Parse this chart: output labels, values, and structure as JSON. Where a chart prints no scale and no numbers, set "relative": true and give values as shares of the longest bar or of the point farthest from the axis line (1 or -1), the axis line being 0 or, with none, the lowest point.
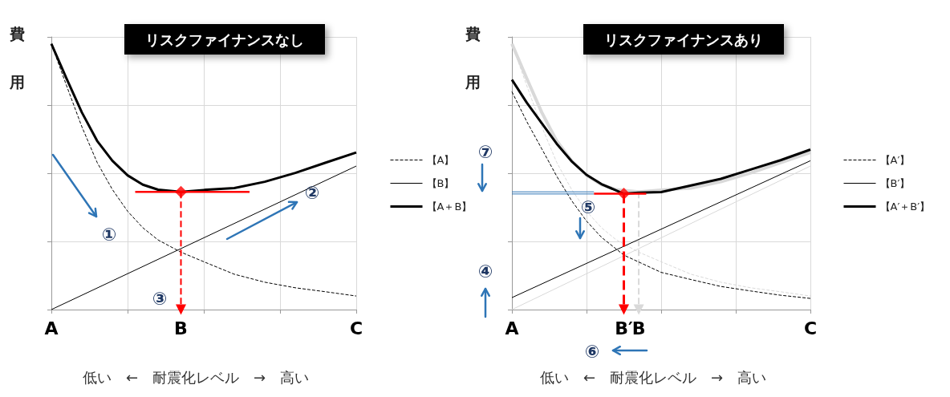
{
  "chart_data": [
    {
      "type": "line",
      "title": "リスクファイナンスなし",
      "ylabel": "費用",
      "xlabel": "低い　←　耐震化レベル　→　高い",
      "relative": true,
      "categories": [
        "A",
        null,
        null,
        null,
        null,
        null,
        null,
        null,
        null,
        null,
        null,
        null,
        null,
        null,
        null,
        null,
        null,
        "B",
        null,
        null,
        null,
        null,
        null,
        null,
        null,
        null,
        null,
        null,
        null,
        null,
        null,
        null,
        null,
        null,
        null,
        null,
        null,
        null,
        null,
        null,
        "C"
      ],
      "grid": true,
      "legend": "right",
      "marker": "none",
      "annotations": [
        "①",
        "②",
        "③"
      ],
      "series": [
        {
          "name": "【A】",
          "color": "#000000",
          "line_style": "dashed",
          "values": [
            1,
            null,
            0.842,
            null,
            0.688,
            null,
            0.554,
            null,
            0.452,
            null,
            0.37,
            null,
            0.308,
            null,
            0.262,
            null,
            null,
            0.216,
            null,
            null,
            0.18,
            null,
            null,
            null,
            0.133,
            null,
            null,
            null,
            0.103,
            null,
            null,
            null,
            0.082,
            null,
            null,
            null,
            0.067,
            null,
            null,
            null,
            0.051
          ]
        },
        {
          "name": "【B】",
          "color": "#000000",
          "values": [
            0,
            null,
            null,
            null,
            null,
            null,
            null,
            null,
            null,
            null,
            null,
            null,
            null,
            null,
            null,
            null,
            null,
            null,
            null,
            null,
            null,
            null,
            null,
            null,
            null,
            null,
            null,
            null,
            null,
            null,
            null,
            null,
            null,
            null,
            null,
            null,
            null,
            null,
            null,
            null,
            0.54
          ]
        },
        {
          "name": "【A＋B】",
          "color": "#000000",
          "values": [
            1,
            null,
            0.869,
            null,
            0.742,
            null,
            0.635,
            null,
            0.56,
            null,
            0.505,
            null,
            0.47,
            null,
            0.451,
            null,
            null,
            0.443,
            null,
            null,
            0.45,
            null,
            null,
            null,
            0.457,
            null,
            null,
            null,
            0.481,
            null,
            null,
            null,
            0.514,
            null,
            null,
            null,
            0.553,
            null,
            null,
            null,
            0.591
          ]
        },
        {
          "color": "#ff0000",
          "values": [
            null,
            null,
            null,
            null,
            null,
            null,
            null,
            null,
            null,
            null,
            null,
            0.443,
            null,
            null,
            null,
            null,
            null,
            null,
            null,
            null,
            null,
            null,
            null,
            null,
            null,
            null,
            0.443,
            null,
            null,
            null,
            null,
            null,
            null,
            null,
            null,
            null,
            null,
            null,
            null,
            null,
            null
          ]
        },
        {
          "color": "#ff0000",
          "line_style": "dashed",
          "marker": "triangle",
          "x": [
            "B",
            "B"
          ],
          "values": [
            0.443,
            0
          ]
        },
        {
          "type": "scatter",
          "color": "#ff0000",
          "marker": "diamond",
          "x": [
            "B"
          ],
          "values": [
            0.443
          ]
        }
      ]
    },
    {
      "type": "line",
      "title": "リスクファイナンスあり",
      "ylabel": "費用",
      "xlabel": "低い　←　耐震化レベル　→　高い",
      "relative": true,
      "categories": [
        "A",
        null,
        null,
        null,
        null,
        null,
        null,
        null,
        null,
        null,
        null,
        null,
        null,
        null,
        null,
        "B′",
        null,
        "B",
        null,
        null,
        null,
        null,
        null,
        null,
        null,
        null,
        null,
        null,
        null,
        null,
        null,
        null,
        null,
        null,
        null,
        null,
        null,
        null,
        null,
        null,
        "C"
      ],
      "grid": true,
      "legend": "right",
      "marker": "none",
      "annotations": [
        "④",
        "⑤",
        "⑥",
        "⑦"
      ],
      "series": [
        {
          "color": "#d9d9d9",
          "line_style": "dashed",
          "values": [
            1,
            null,
            0.842,
            null,
            0.688,
            null,
            0.554,
            null,
            0.452,
            null,
            0.37,
            null,
            0.308,
            null,
            0.262,
            null,
            null,
            0.216,
            null,
            null,
            0.18,
            null,
            null,
            null,
            0.133,
            null,
            null,
            null,
            0.103,
            null,
            null,
            null,
            0.082,
            null,
            null,
            null,
            0.067,
            null,
            null,
            null,
            0.051
          ]
        },
        {
          "color": "#d9d9d9",
          "values": [
            0,
            null,
            null,
            null,
            null,
            null,
            null,
            null,
            null,
            null,
            null,
            null,
            null,
            null,
            null,
            null,
            null,
            null,
            null,
            null,
            null,
            null,
            null,
            null,
            null,
            null,
            null,
            null,
            null,
            null,
            null,
            null,
            null,
            null,
            null,
            null,
            null,
            null,
            null,
            null,
            0.54
          ]
        },
        {
          "color": "#d9d9d9",
          "values": [
            1,
            null,
            0.869,
            null,
            0.742,
            null,
            0.635,
            null,
            0.56,
            null,
            0.505,
            null,
            0.47,
            null,
            0.451,
            null,
            null,
            0.443,
            null,
            null,
            0.45,
            null,
            null,
            null,
            0.457,
            null,
            null,
            null,
            0.481,
            null,
            null,
            null,
            0.514,
            null,
            null,
            null,
            0.553,
            null,
            null,
            null,
            0.591
          ]
        },
        {
          "color": "#d9d9d9",
          "line_style": "dashed",
          "marker": "triangle",
          "x": [
            "B",
            "B"
          ],
          "values": [
            0.443,
            0
          ]
        },
        {
          "name": "【A′】",
          "color": "#000000",
          "line_style": "dashed",
          "values": [
            0.82,
            null,
            0.707,
            null,
            0.605,
            null,
            0.502,
            null,
            0.41,
            null,
            0.333,
            null,
            0.272,
            null,
            null,
            0.205,
            null,
            0.179,
            null,
            null,
            0.14,
            null,
            null,
            null,
            0.113,
            null,
            null,
            null,
            0.087,
            null,
            null,
            null,
            0.07,
            null,
            null,
            null,
            0.054,
            null,
            null,
            null,
            0.042
          ]
        },
        {
          "name": "【B′】",
          "color": "#000000",
          "values": [
            0.045,
            null,
            null,
            null,
            null,
            null,
            null,
            null,
            null,
            null,
            null,
            null,
            null,
            null,
            null,
            null,
            null,
            null,
            null,
            null,
            null,
            null,
            null,
            null,
            null,
            null,
            null,
            null,
            null,
            null,
            null,
            null,
            null,
            null,
            null,
            null,
            null,
            null,
            null,
            null,
            0.56
          ]
        },
        {
          "name": "【A′＋B′】",
          "color": "#000000",
          "values": [
            0.865,
            null,
            0.778,
            null,
            0.701,
            null,
            0.624,
            null,
            0.558,
            null,
            0.507,
            null,
            0.472,
            null,
            null,
            0.436,
            null,
            0.44,
            null,
            null,
            0.442,
            null,
            null,
            null,
            0.467,
            null,
            null,
            null,
            0.492,
            null,
            null,
            null,
            0.527,
            null,
            null,
            null,
            0.562,
            null,
            null,
            null,
            0.602
          ]
        },
        {
          "color": "#2e75b6",
          "values": [
            0.443,
            null,
            null,
            null,
            null,
            null,
            null,
            null,
            null,
            null,
            null,
            0.443,
            null,
            null,
            null,
            null,
            null,
            null,
            null,
            null,
            null,
            null,
            null,
            null,
            null,
            null,
            null,
            null,
            null,
            null,
            null,
            null,
            null,
            null,
            null,
            null,
            null,
            null,
            null,
            null,
            null
          ]
        },
        {
          "color": "#2e75b6",
          "values": [
            0.435,
            null,
            null,
            null,
            null,
            null,
            null,
            null,
            null,
            null,
            null,
            0.435,
            null,
            null,
            null,
            null,
            null,
            null,
            null,
            null,
            null,
            null,
            null,
            null,
            null,
            null,
            null,
            null,
            null,
            null,
            null,
            null,
            null,
            null,
            null,
            null,
            null,
            null,
            null,
            null,
            null
          ]
        },
        {
          "color": "#ff0000",
          "values": [
            null,
            null,
            null,
            null,
            null,
            null,
            null,
            null,
            null,
            null,
            null,
            0.436,
            null,
            null,
            null,
            null,
            null,
            null,
            0.436,
            null,
            null,
            null,
            null,
            null,
            null,
            null,
            null,
            null,
            null,
            null,
            null,
            null,
            null,
            null,
            null,
            null,
            null,
            null,
            null,
            null,
            null
          ]
        },
        {
          "color": "#ff0000",
          "line_style": "dashed",
          "marker": "triangle",
          "x": [
            "B′",
            "B′"
          ],
          "values": [
            0.436,
            0
          ]
        },
        {
          "type": "scatter",
          "color": "#ff0000",
          "marker": "diamond",
          "x": [
            "B′"
          ],
          "values": [
            0.436
          ]
        }
      ]
    }
  ]
}
